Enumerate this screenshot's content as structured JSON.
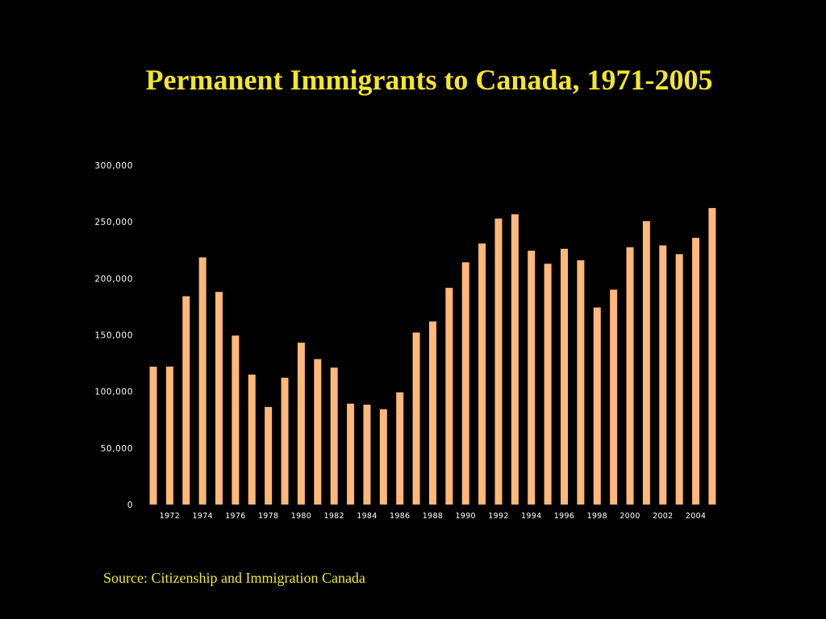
{
  "slide": {
    "title": "Permanent Immigrants to Canada, 1971-2005",
    "source": "Source: Citizenship and Immigration Canada"
  },
  "colors": {
    "background": "#000000",
    "title": "#f2e62a",
    "bar": "#ffb77a",
    "tick_text": "#ffffff"
  },
  "chart_data": {
    "type": "bar",
    "title": "Permanent Immigrants to Canada, 1971-2005",
    "xlabel": "",
    "ylabel": "",
    "ylim": [
      0,
      300000
    ],
    "grid": false,
    "legend": "none",
    "y_ticks": [
      {
        "value": 0,
        "label": "0"
      },
      {
        "value": 50000,
        "label": "50,000"
      },
      {
        "value": 100000,
        "label": "100,000"
      },
      {
        "value": 150000,
        "label": "150,000"
      },
      {
        "value": 200000,
        "label": "200,000"
      },
      {
        "value": 250000,
        "label": "250,000"
      },
      {
        "value": 300000,
        "label": "300,000"
      }
    ],
    "categories": [
      "1971",
      "1972",
      "1973",
      "1974",
      "1975",
      "1976",
      "1977",
      "1978",
      "1979",
      "1980",
      "1981",
      "1982",
      "1983",
      "1984",
      "1985",
      "1986",
      "1987",
      "1988",
      "1989",
      "1990",
      "1991",
      "1992",
      "1993",
      "1994",
      "1995",
      "1996",
      "1997",
      "1998",
      "1999",
      "2000",
      "2001",
      "2002",
      "2003",
      "2004",
      "2005"
    ],
    "x_tick_labels": [
      "1972",
      "1974",
      "1976",
      "1978",
      "1980",
      "1982",
      "1984",
      "1986",
      "1988",
      "1990",
      "1992",
      "1994",
      "1996",
      "1998",
      "2000",
      "2002",
      "2004"
    ],
    "values": [
      121900,
      122000,
      184200,
      218500,
      188000,
      149400,
      114900,
      86300,
      112100,
      143100,
      128600,
      121100,
      89200,
      88300,
      84300,
      99200,
      152100,
      161900,
      191600,
      214200,
      230800,
      252800,
      256700,
      224400,
      212900,
      226100,
      216000,
      174200,
      190000,
      227500,
      250600,
      229100,
      221400,
      235800,
      262200
    ]
  }
}
